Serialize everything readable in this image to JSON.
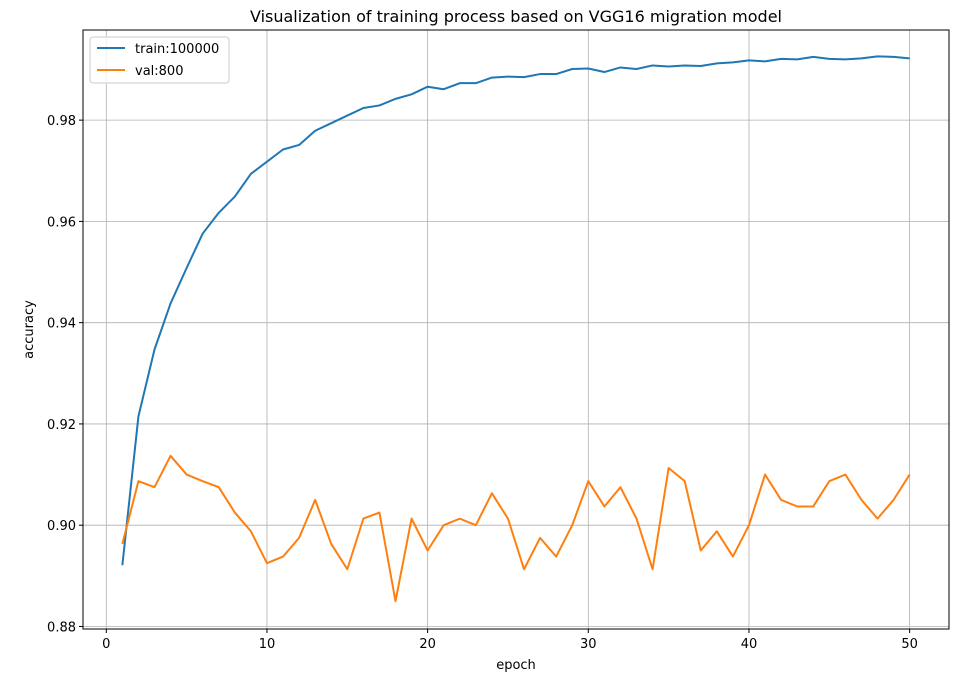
{
  "chart_data": {
    "type": "line",
    "title": "Visualization of training process based on VGG16 migration model",
    "xlabel": "epoch",
    "ylabel": "accuracy",
    "xlim": [
      -1.45,
      52.45
    ],
    "ylim": [
      0.8795,
      0.9978
    ],
    "grid": true,
    "legend_position": "top-left",
    "xticks": [
      0,
      10,
      20,
      30,
      40,
      50
    ],
    "yticks": [
      0.88,
      0.9,
      0.92,
      0.94,
      0.96,
      0.98
    ],
    "ytick_labels": [
      "0.88",
      "0.90",
      "0.92",
      "0.94",
      "0.96",
      "0.98"
    ],
    "x": [
      1,
      2,
      3,
      4,
      5,
      6,
      7,
      8,
      9,
      10,
      11,
      12,
      13,
      14,
      15,
      16,
      17,
      18,
      19,
      20,
      21,
      22,
      23,
      24,
      25,
      26,
      27,
      28,
      29,
      30,
      31,
      32,
      33,
      34,
      35,
      36,
      37,
      38,
      39,
      40,
      41,
      42,
      43,
      44,
      45,
      46,
      47,
      48,
      49,
      50
    ],
    "series": [
      {
        "name": "train:100000",
        "color": "#1f77b4",
        "values": [
          0.8921,
          0.9215,
          0.9347,
          0.9438,
          0.9508,
          0.9576,
          0.9617,
          0.9649,
          0.9694,
          0.9718,
          0.9742,
          0.9751,
          0.9779,
          0.9794,
          0.9809,
          0.9824,
          0.9829,
          0.9842,
          0.9851,
          0.9866,
          0.9861,
          0.9873,
          0.9873,
          0.9884,
          0.9886,
          0.9885,
          0.9891,
          0.9891,
          0.9901,
          0.9902,
          0.9895,
          0.9904,
          0.9901,
          0.9908,
          0.9906,
          0.9908,
          0.9907,
          0.9912,
          0.9914,
          0.9918,
          0.9916,
          0.9921,
          0.992,
          0.9925,
          0.9921,
          0.992,
          0.9922,
          0.9926,
          0.9925,
          0.9922
        ]
      },
      {
        "name": "val:800",
        "color": "#ff7f0e",
        "values": [
          0.8963,
          0.9087,
          0.9075,
          0.9137,
          0.91,
          0.9087,
          0.9075,
          0.9025,
          0.8988,
          0.8925,
          0.8938,
          0.8975,
          0.905,
          0.8963,
          0.8913,
          0.9013,
          0.9025,
          0.885,
          0.9013,
          0.895,
          0.9,
          0.9013,
          0.9,
          0.9063,
          0.9013,
          0.8913,
          0.8975,
          0.8938,
          0.9,
          0.9087,
          0.9037,
          0.9075,
          0.9013,
          0.8913,
          0.9113,
          0.9087,
          0.895,
          0.8988,
          0.8938,
          0.9,
          0.91,
          0.905,
          0.9037,
          0.9037,
          0.9087,
          0.91,
          0.905,
          0.9013,
          0.905,
          0.91
        ]
      }
    ]
  }
}
